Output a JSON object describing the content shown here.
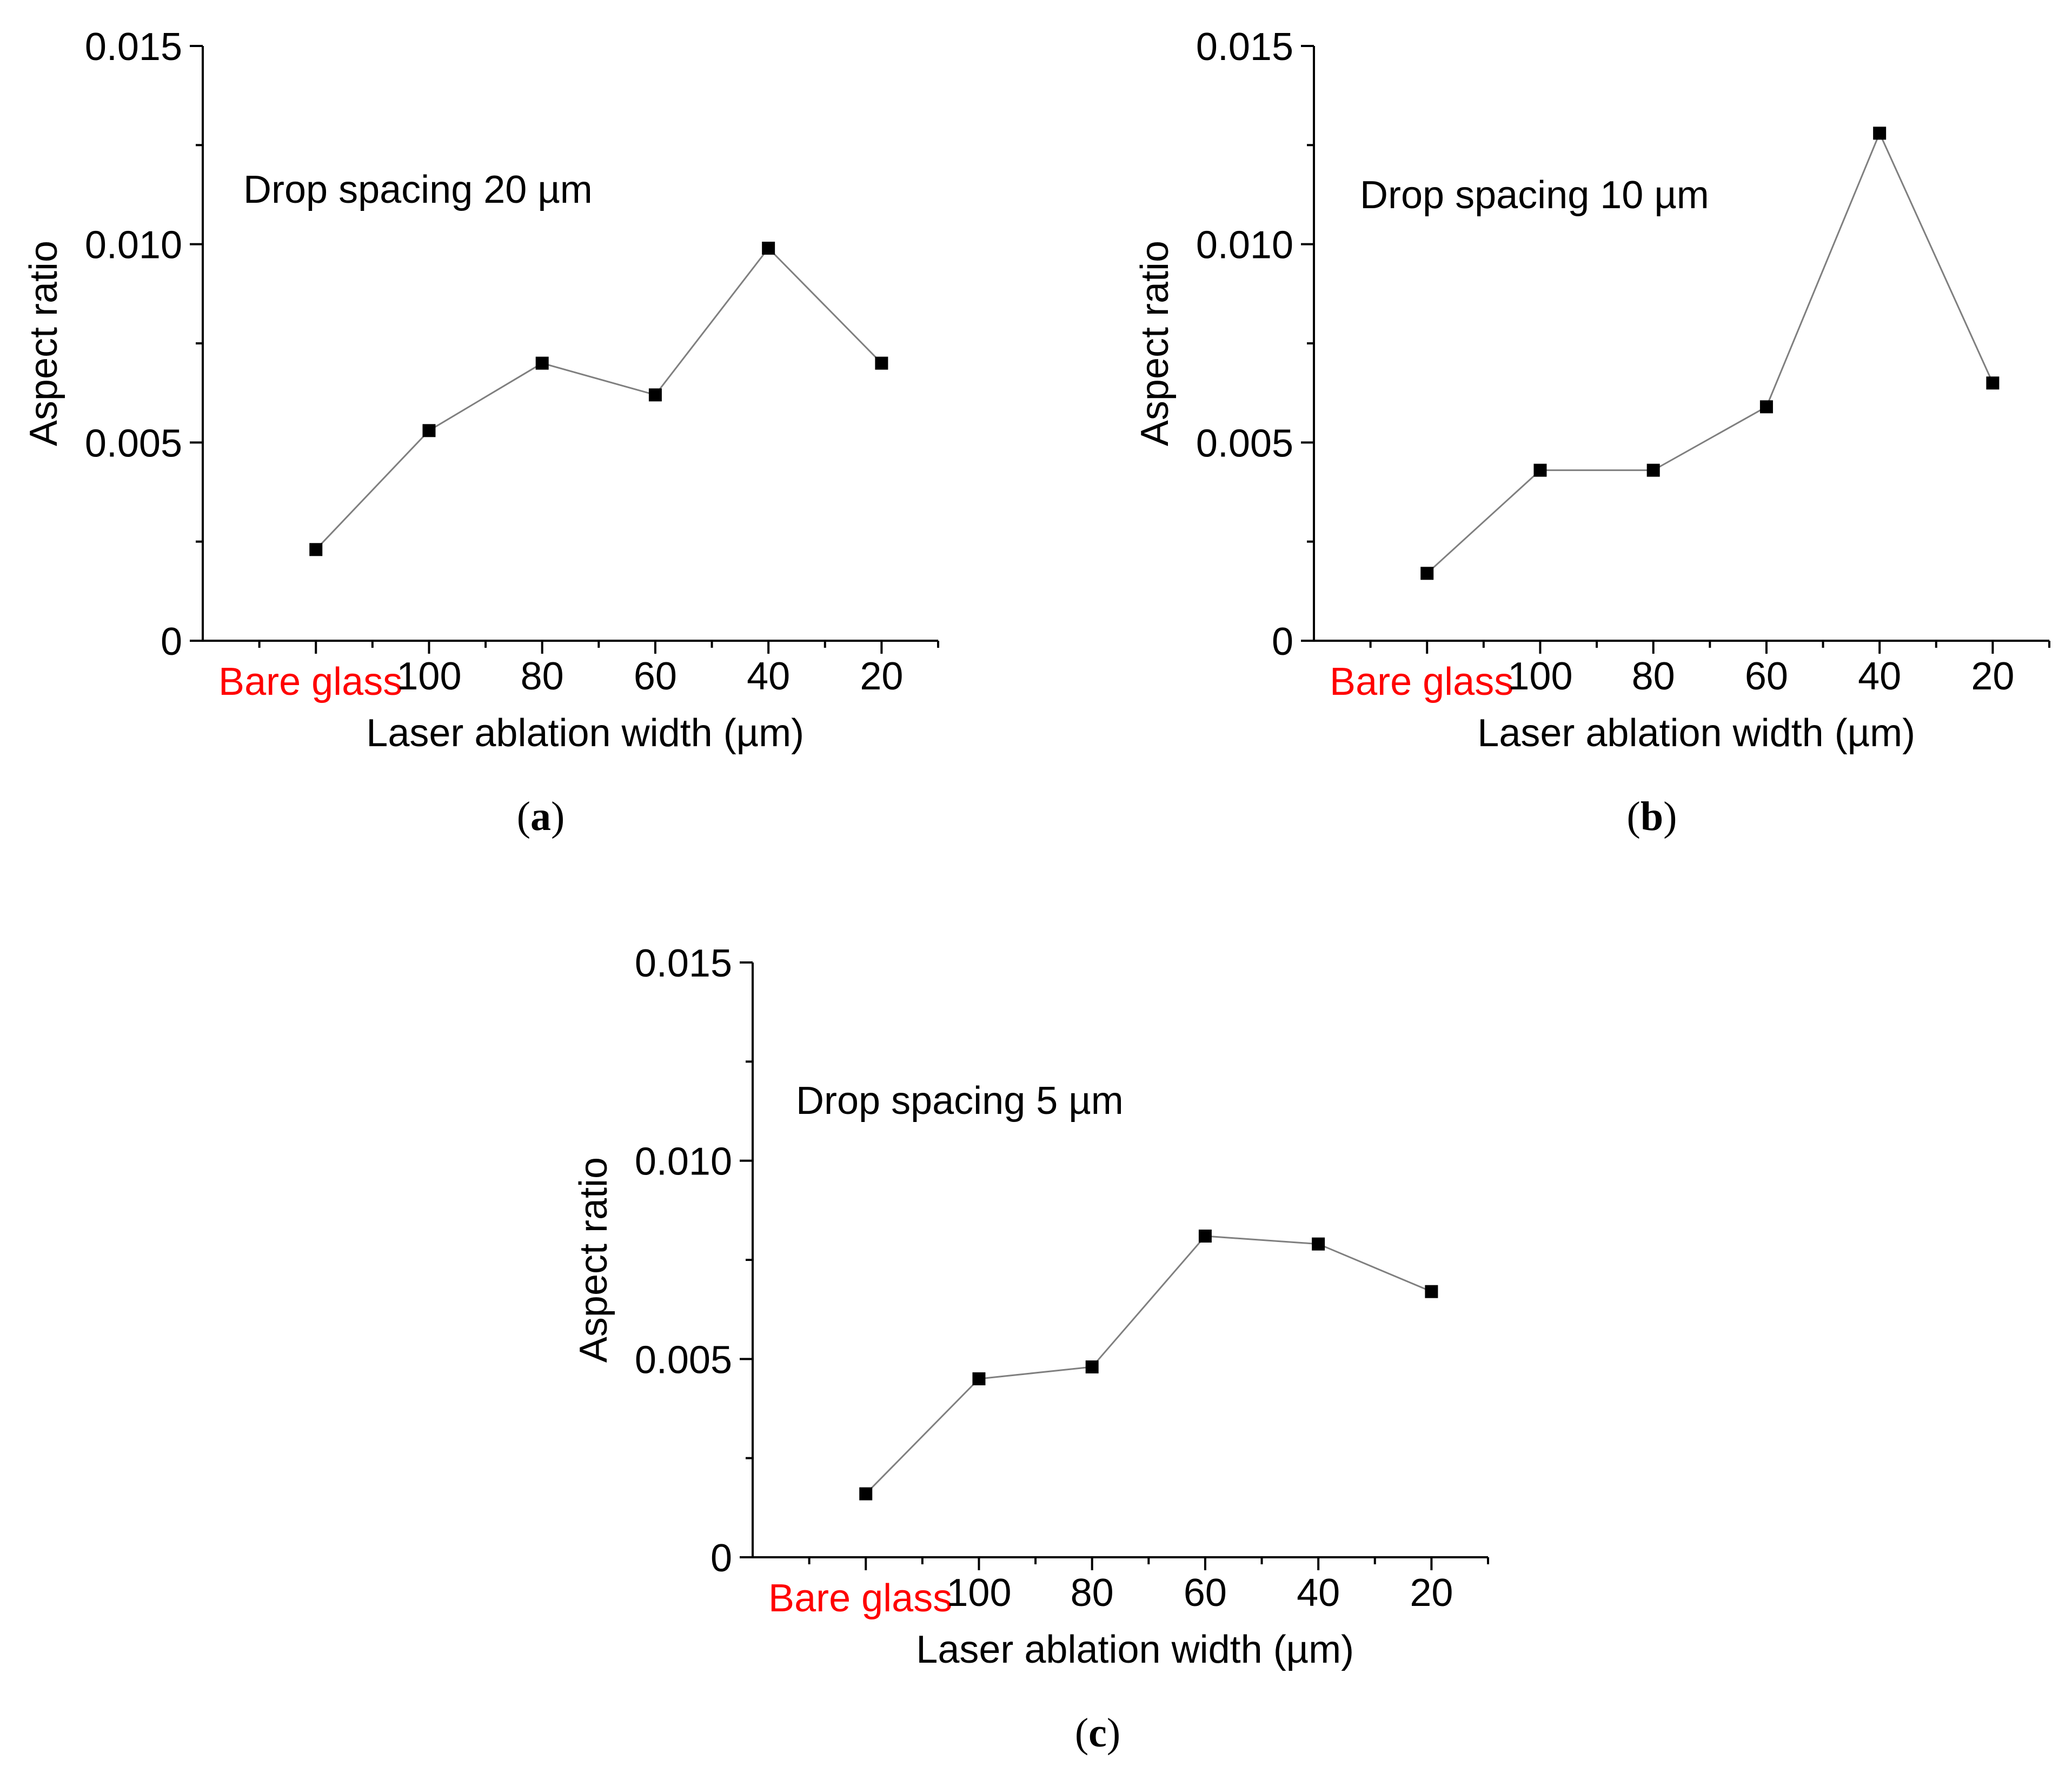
{
  "chart_data": [
    {
      "type": "line",
      "panel_label": "(a)",
      "caption": {
        "open": "(",
        "letter": "a",
        "close": ")"
      },
      "annotation": "Drop spacing 20 µm",
      "xlabel": "Laser ablation width (µm)",
      "ylabel": "Aspect ratio",
      "categories": [
        "Bare glass",
        "100",
        "80",
        "60",
        "40",
        "20"
      ],
      "highlight_category": "Bare glass",
      "highlight_color": "#ff0000",
      "yticks": [
        "0",
        "0.005",
        "0.010",
        "0.015"
      ],
      "ylim": [
        0,
        0.015
      ],
      "series": [
        {
          "name": "Aspect ratio",
          "values": [
            0.0023,
            0.0053,
            0.007,
            0.0062,
            0.0099,
            0.007
          ]
        }
      ],
      "marker": "square",
      "line_color": "#7f7f7f",
      "marker_color": "#000000"
    },
    {
      "type": "line",
      "panel_label": "(b)",
      "caption": {
        "open": "(",
        "letter": "b",
        "close": ")"
      },
      "annotation": "Drop spacing 10 µm",
      "xlabel": "Laser ablation width (µm)",
      "ylabel": "Aspect ratio",
      "categories": [
        "Bare glass",
        "100",
        "80",
        "60",
        "40",
        "20"
      ],
      "highlight_category": "Bare glass",
      "highlight_color": "#ff0000",
      "yticks": [
        "0",
        "0.005",
        "0.010",
        "0.015"
      ],
      "ylim": [
        0,
        0.015
      ],
      "series": [
        {
          "name": "Aspect ratio",
          "values": [
            0.0017,
            0.0043,
            0.0043,
            0.0059,
            0.0128,
            0.0065
          ]
        }
      ],
      "marker": "square",
      "line_color": "#7f7f7f",
      "marker_color": "#000000"
    },
    {
      "type": "line",
      "panel_label": "(c)",
      "caption": {
        "open": "(",
        "letter": "c",
        "close": ")"
      },
      "annotation": "Drop spacing 5 µm",
      "xlabel": "Laser ablation width (µm)",
      "ylabel": "Aspect ratio",
      "categories": [
        "Bare glass",
        "100",
        "80",
        "60",
        "40",
        "20"
      ],
      "highlight_category": "Bare glass",
      "highlight_color": "#ff0000",
      "yticks": [
        "0",
        "0.005",
        "0.010",
        "0.015"
      ],
      "ylim": [
        0,
        0.015
      ],
      "series": [
        {
          "name": "Aspect ratio",
          "values": [
            0.0016,
            0.0045,
            0.0048,
            0.0081,
            0.0079,
            0.0067
          ]
        }
      ],
      "marker": "square",
      "line_color": "#7f7f7f",
      "marker_color": "#000000"
    }
  ]
}
